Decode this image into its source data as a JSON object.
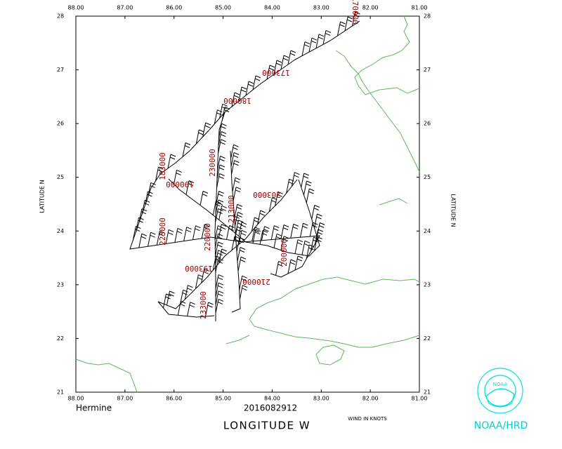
{
  "map": {
    "storm": "Hermine",
    "date": "2016082912",
    "x_axis_label": "LONGITUDE  W",
    "y_axis_label": "LATITUDE  N",
    "wind_note": "WIND IN KNOTS",
    "agency": "NOAA/HRD",
    "logo_text": "NOAA",
    "x_ticks": [
      "88.00",
      "87.00",
      "86.00",
      "85.00",
      "84.00",
      "83.00",
      "82.00",
      "81.00"
    ],
    "y_ticks": [
      "21",
      "22",
      "23",
      "24",
      "25",
      "26",
      "27",
      "28"
    ],
    "time_labels": [
      "170000",
      "173000",
      "180000",
      "183000",
      "190000",
      "193000",
      "200000",
      "203000",
      "210000",
      "213000",
      "220000",
      "223000",
      "230000",
      "233000"
    ]
  }
}
